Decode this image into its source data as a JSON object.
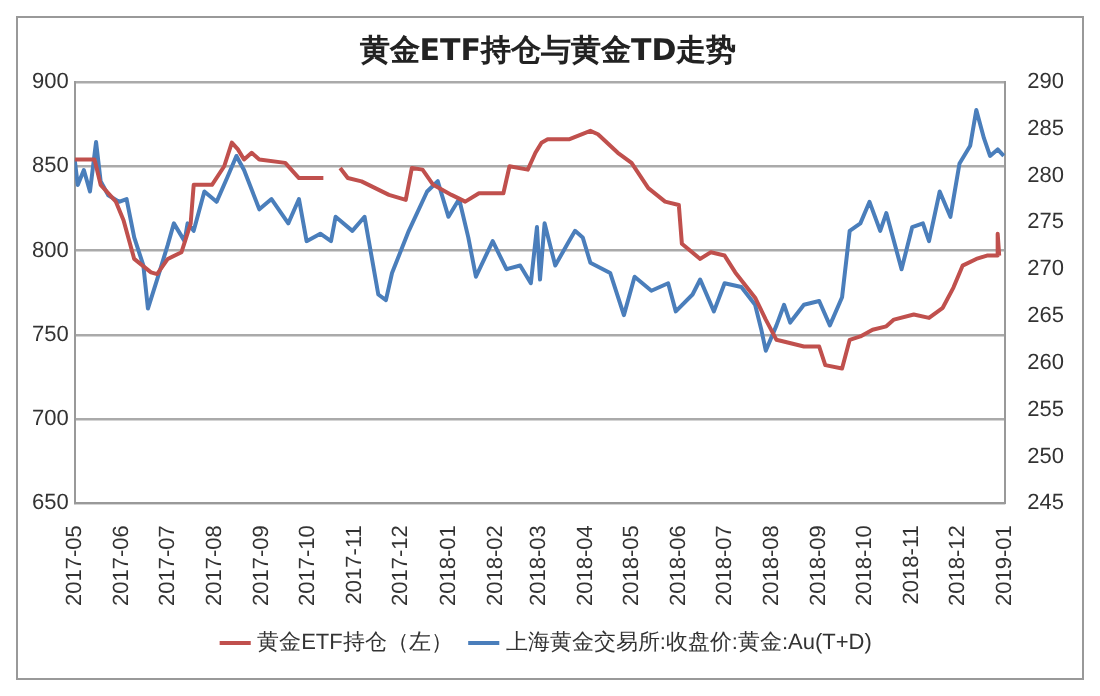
{
  "chart_data": {
    "type": "line",
    "title": "黄金ETF持仓与黄金TD走势",
    "xlim": [
      "2017-05",
      "2019-01"
    ],
    "xticks": [
      "2017-05",
      "2017-06",
      "2017-07",
      "2017-08",
      "2017-09",
      "2017-10",
      "2017-11",
      "2017-12",
      "2018-01",
      "2018-02",
      "2018-03",
      "2018-04",
      "2018-05",
      "2018-06",
      "2018-07",
      "2018-08",
      "2018-09",
      "2018-10",
      "2018-11",
      "2018-12",
      "2019-01"
    ],
    "ylim": [
      650,
      900
    ],
    "yticks": [
      650,
      700,
      750,
      800,
      850,
      900
    ],
    "y2lim": [
      245,
      290
    ],
    "y2ticks": [
      245,
      250,
      255,
      260,
      265,
      270,
      275,
      280,
      285,
      290
    ],
    "grid": "y",
    "legend": "bottom",
    "marker": "none",
    "line_style": "solid",
    "series": [
      {
        "name": "黄金ETF持仓（左）",
        "color": "#c0504d",
        "x": [
          "2017-05-01",
          "2017-05-14",
          "2017-05-18",
          "2017-05-28",
          "2017-06-02",
          "2017-06-09",
          "2017-06-20",
          "2017-06-24",
          "2017-07-01",
          "2017-07-10",
          "2017-07-16",
          "2017-07-18",
          "2017-07-30",
          "2017-08-07",
          "2017-08-12",
          "2017-08-16",
          "2017-08-20",
          "2017-08-25",
          "2017-08-30",
          "2017-09-16",
          "2017-09-25",
          "2017-10-11",
          "2017-10-15",
          "2017-10-22",
          "2017-10-27",
          "2017-11-05",
          "2017-11-23",
          "2017-12-04",
          "2017-12-08",
          "2017-12-15",
          "2017-12-22",
          "2018-01-03",
          "2018-01-12",
          "2018-01-21",
          "2018-02-06",
          "2018-02-10",
          "2018-02-22",
          "2018-02-27",
          "2018-03-03",
          "2018-03-07",
          "2018-03-21",
          "2018-04-04",
          "2018-04-09",
          "2018-04-22",
          "2018-05-01",
          "2018-05-12",
          "2018-05-23",
          "2018-06-01",
          "2018-06-03",
          "2018-06-15",
          "2018-06-22",
          "2018-07-01",
          "2018-07-08",
          "2018-07-21",
          "2018-07-28",
          "2018-08-04",
          "2018-08-22",
          "2018-09-01",
          "2018-09-05",
          "2018-09-16",
          "2018-09-21",
          "2018-09-28",
          "2018-10-06",
          "2018-10-15",
          "2018-10-20",
          "2018-11-02",
          "2018-11-12",
          "2018-11-21",
          "2018-11-28",
          "2018-12-04",
          "2018-12-13",
          "2018-12-20",
          "2018-12-26",
          "2018-12-27",
          "2018-12-28"
        ],
        "values": [
          854,
          854,
          839,
          829,
          818,
          795,
          787,
          786,
          795,
          799,
          816,
          839,
          839,
          850,
          864,
          860,
          854,
          858,
          854,
          852,
          843,
          843,
          null,
          849,
          843,
          841,
          833,
          830,
          849,
          848,
          839,
          833,
          829,
          834,
          834,
          850,
          848,
          858,
          864,
          866,
          866,
          871,
          869,
          858,
          852,
          837,
          829,
          827,
          804,
          795,
          799,
          797,
          787,
          772,
          759,
          747,
          743,
          743,
          732,
          730,
          747,
          749,
          753,
          755,
          759,
          762,
          760,
          766,
          778,
          791,
          795,
          797,
          797,
          810,
          797
        ]
      },
      {
        "name": "上海黄金交易所:收盘价:黄金:Au(T+D)",
        "color": "#4a7ebb",
        "axis": "y2",
        "x": [
          "2017-05-01",
          "2017-05-03",
          "2017-05-07",
          "2017-05-11",
          "2017-05-15",
          "2017-05-18",
          "2017-05-23",
          "2017-05-30",
          "2017-06-04",
          "2017-06-09",
          "2017-06-15",
          "2017-06-18",
          "2017-06-24",
          "2017-07-01",
          "2017-07-05",
          "2017-07-12",
          "2017-07-14",
          "2017-07-18",
          "2017-07-25",
          "2017-08-02",
          "2017-08-09",
          "2017-08-15",
          "2017-08-20",
          "2017-08-30",
          "2017-09-07",
          "2017-09-18",
          "2017-09-25",
          "2017-09-30",
          "2017-10-09",
          "2017-10-16",
          "2017-10-19",
          "2017-10-30",
          "2017-11-07",
          "2017-11-16",
          "2017-11-21",
          "2017-11-25",
          "2017-12-06",
          "2017-12-18",
          "2017-12-25",
          "2018-01-01",
          "2018-01-08",
          "2018-01-14",
          "2018-01-19",
          "2018-01-30",
          "2018-02-08",
          "2018-02-17",
          "2018-02-24",
          "2018-02-28",
          "2018-03-02",
          "2018-03-05",
          "2018-03-12",
          "2018-03-21",
          "2018-03-25",
          "2018-03-30",
          "2018-04-04",
          "2018-04-17",
          "2018-04-26",
          "2018-05-03",
          "2018-05-14",
          "2018-05-25",
          "2018-05-30",
          "2018-06-10",
          "2018-06-15",
          "2018-06-24",
          "2018-07-01",
          "2018-07-12",
          "2018-07-21",
          "2018-07-25",
          "2018-07-28",
          "2018-08-04",
          "2018-08-09",
          "2018-08-13",
          "2018-08-22",
          "2018-09-01",
          "2018-09-08",
          "2018-09-16",
          "2018-09-21",
          "2018-09-28",
          "2018-10-04",
          "2018-10-11",
          "2018-10-15",
          "2018-10-25",
          "2018-11-01",
          "2018-11-08",
          "2018-11-12",
          "2018-11-19",
          "2018-11-26",
          "2018-12-02",
          "2018-12-09",
          "2018-12-13",
          "2018-12-18",
          "2018-12-22",
          "2018-12-27",
          "2018-12-31"
        ],
        "values": [
          281.7,
          279.0,
          280.6,
          278.3,
          283.6,
          279.4,
          277.9,
          277.2,
          277.5,
          273.4,
          270.4,
          265.8,
          268.9,
          272.6,
          274.9,
          273.0,
          274.9,
          274.1,
          278.3,
          277.2,
          279.8,
          282.1,
          280.6,
          276.4,
          277.5,
          274.9,
          277.5,
          273.0,
          273.8,
          273.0,
          275.6,
          274.1,
          275.6,
          267.3,
          266.7,
          269.6,
          274.1,
          278.3,
          279.4,
          275.6,
          277.5,
          273.4,
          269.2,
          273.0,
          270.0,
          270.4,
          268.5,
          274.5,
          268.9,
          274.9,
          270.4,
          273.0,
          274.1,
          273.4,
          270.7,
          269.6,
          265.1,
          269.2,
          267.7,
          268.5,
          265.5,
          267.3,
          268.9,
          265.5,
          268.5,
          268.1,
          266.2,
          263.6,
          261.3,
          264.0,
          266.2,
          264.3,
          266.2,
          266.6,
          264.0,
          267.0,
          274.1,
          274.9,
          277.2,
          274.1,
          276.0,
          270.0,
          274.5,
          274.9,
          273.0,
          278.3,
          275.6,
          281.3,
          283.2,
          287.0,
          284.0,
          282.1,
          282.8,
          282.1
        ]
      }
    ]
  }
}
